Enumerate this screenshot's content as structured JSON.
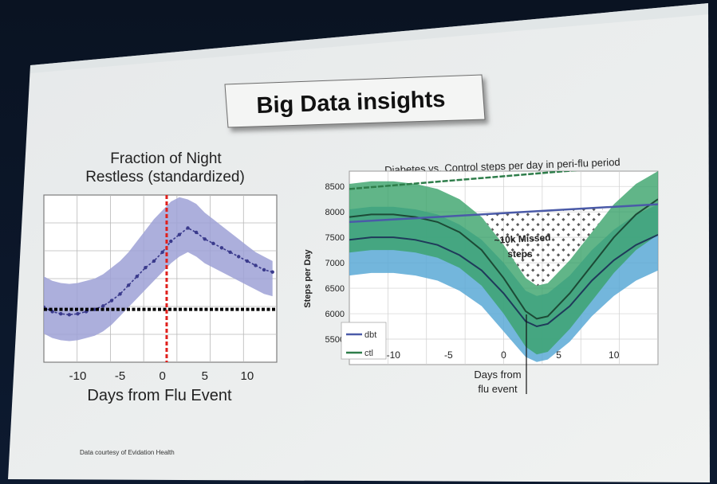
{
  "slide": {
    "title": "Big Data insights",
    "credit": "Data courtesy of Evidation Health"
  },
  "chart_data": [
    {
      "type": "line",
      "title_line1": "Fraction of Night",
      "title_line2": "Restless (standardized)",
      "xlabel": "Days from Flu Event",
      "ylabel": "",
      "xlim": [
        -14,
        13.5
      ],
      "ylim": [
        -1.2,
        2.6
      ],
      "grid": true,
      "x_ticks": [
        "-10",
        "-5",
        "0",
        "5",
        "10"
      ],
      "x_tick_values": [
        -10,
        -5,
        0,
        5,
        10
      ],
      "colors": {
        "line": "#3a3a8c",
        "band": "#9ea1d6",
        "baseline": "#000000",
        "event": "#e0201c",
        "grid": "#b8b8b8"
      },
      "series": [
        {
          "type": "line-with-band",
          "x": [
            -14,
            -13,
            -12,
            -11,
            -10,
            -9,
            -8,
            -7,
            -6,
            -5,
            -4,
            -3,
            -2,
            -1,
            0,
            1,
            2,
            3,
            4,
            5,
            6,
            7,
            8,
            9,
            10,
            11,
            12,
            13
          ],
          "y": [
            0.05,
            -0.05,
            -0.1,
            -0.12,
            -0.1,
            -0.05,
            0.0,
            0.08,
            0.2,
            0.35,
            0.55,
            0.75,
            0.95,
            1.1,
            1.3,
            1.55,
            1.7,
            1.85,
            1.75,
            1.6,
            1.5,
            1.4,
            1.3,
            1.2,
            1.1,
            1.0,
            0.9,
            0.85
          ],
          "lower": [
            -0.55,
            -0.65,
            -0.7,
            -0.72,
            -0.7,
            -0.65,
            -0.6,
            -0.5,
            -0.35,
            -0.15,
            0.05,
            0.25,
            0.45,
            0.65,
            0.85,
            1.05,
            1.2,
            1.3,
            1.2,
            1.05,
            0.95,
            0.85,
            0.75,
            0.65,
            0.55,
            0.45,
            0.35,
            0.3
          ],
          "upper": [
            0.75,
            0.65,
            0.6,
            0.58,
            0.6,
            0.65,
            0.7,
            0.8,
            0.95,
            1.1,
            1.3,
            1.55,
            1.8,
            2.05,
            2.25,
            2.45,
            2.55,
            2.5,
            2.4,
            2.2,
            2.05,
            1.9,
            1.75,
            1.6,
            1.45,
            1.3,
            1.2,
            1.1
          ]
        },
        {
          "type": "hline",
          "y": 0.0
        },
        {
          "type": "vline",
          "x": 0.5
        }
      ]
    },
    {
      "type": "line",
      "title": "Diabetes vs. Control steps per day in peri-flu period",
      "ylabel": "Steps per Day",
      "xlabel": "Days from flu event",
      "xlabel_line1": "Days from",
      "xlabel_line2": "flu event",
      "xlim": [
        -14,
        14
      ],
      "ylim": [
        5000,
        8800
      ],
      "grid": true,
      "y_ticks": [
        "8500",
        "8000",
        "7500",
        "7000",
        "6500",
        "6000",
        "5500"
      ],
      "y_tick_values": [
        8500,
        8000,
        7500,
        7000,
        6500,
        6000,
        5500
      ],
      "x_ticks": [
        "-10",
        "-5",
        "0",
        "5",
        "10"
      ],
      "x_tick_values": [
        -10,
        -5,
        0,
        5,
        10
      ],
      "flu_event_x": 3,
      "annotation_line1": "~10k Missed",
      "annotation_line2": "steps",
      "legend": {
        "placement": "bottom-left",
        "entries": [
          {
            "label": "dbt",
            "color": "#4a5aa8"
          },
          {
            "label": "ctl",
            "color": "#2e7d4a"
          }
        ]
      },
      "colors": {
        "dbt_band": "#5aa9d6",
        "ctl_band": "#3aa36a",
        "dbt_line": "#1f3a5a",
        "ctl_line": "#1c4a36",
        "dbt_baseline": "#4a5aa8",
        "ctl_baseline": "#2e7d4a",
        "hatch": "#2a2a2a"
      },
      "series": [
        {
          "name": "dbt",
          "x": [
            -14,
            -12,
            -10,
            -8,
            -6,
            -4,
            -2,
            0,
            2,
            3,
            4,
            6,
            8,
            10,
            12,
            14
          ],
          "y": [
            7450,
            7500,
            7500,
            7450,
            7350,
            7150,
            6850,
            6400,
            5850,
            5750,
            5800,
            6150,
            6650,
            7050,
            7350,
            7550
          ],
          "lower": [
            6750,
            6800,
            6800,
            6750,
            6650,
            6450,
            6150,
            5650,
            5150,
            5050,
            5100,
            5450,
            5950,
            6350,
            6650,
            6850
          ],
          "upper": [
            8050,
            8100,
            8100,
            8050,
            7950,
            7750,
            7450,
            7000,
            6450,
            6350,
            6400,
            6750,
            7250,
            7650,
            7950,
            8150
          ]
        },
        {
          "name": "ctl",
          "x": [
            -14,
            -12,
            -10,
            -8,
            -6,
            -4,
            -2,
            0,
            2,
            3,
            4,
            6,
            8,
            10,
            12,
            14
          ],
          "y": [
            7900,
            7950,
            7950,
            7900,
            7800,
            7600,
            7250,
            6700,
            6050,
            5900,
            5950,
            6400,
            6950,
            7500,
            7950,
            8250
          ],
          "lower": [
            7200,
            7250,
            7250,
            7200,
            7100,
            6900,
            6550,
            6000,
            5350,
            5200,
            5250,
            5700,
            6250,
            6800,
            7250,
            7550
          ],
          "upper": [
            8550,
            8600,
            8600,
            8550,
            8450,
            8250,
            7900,
            7350,
            6700,
            6550,
            6600,
            7050,
            7600,
            8150,
            8550,
            8800
          ]
        },
        {
          "name": "ctl baseline",
          "x": [
            -14,
            14
          ],
          "y": [
            8450,
            8950
          ]
        },
        {
          "name": "dbt baseline",
          "x": [
            -14,
            14
          ],
          "y": [
            7800,
            8150
          ]
        }
      ]
    }
  ]
}
